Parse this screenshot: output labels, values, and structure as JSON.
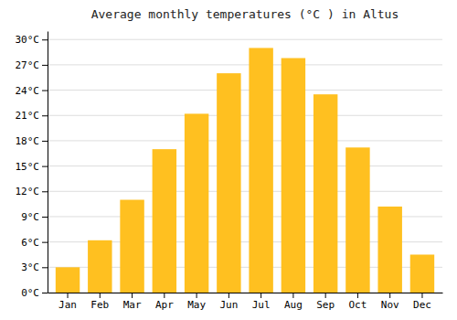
{
  "chart_data": {
    "type": "bar",
    "title": "Average monthly temperatures (°C ) in Altus",
    "categories": [
      "Jan",
      "Feb",
      "Mar",
      "Apr",
      "May",
      "Jun",
      "Jul",
      "Aug",
      "Sep",
      "Oct",
      "Nov",
      "Dec"
    ],
    "values": [
      3.0,
      6.2,
      11.0,
      17.0,
      21.2,
      26.0,
      29.0,
      27.8,
      23.5,
      17.2,
      10.2,
      4.5
    ],
    "color": "#FFC020",
    "ylim": [
      0,
      31
    ],
    "yticks": [
      {
        "value": 0,
        "label": "0°C"
      },
      {
        "value": 3,
        "label": "3°C"
      },
      {
        "value": 6,
        "label": "6°C"
      },
      {
        "value": 9,
        "label": "9°C"
      },
      {
        "value": 12,
        "label": "12°C"
      },
      {
        "value": 15,
        "label": "15°C"
      },
      {
        "value": 18,
        "label": "18°C"
      },
      {
        "value": 21,
        "label": "21°C"
      },
      {
        "value": 24,
        "label": "24°C"
      },
      {
        "value": 27,
        "label": "27°C"
      },
      {
        "value": 30,
        "label": "30°C"
      }
    ],
    "grid": true
  }
}
